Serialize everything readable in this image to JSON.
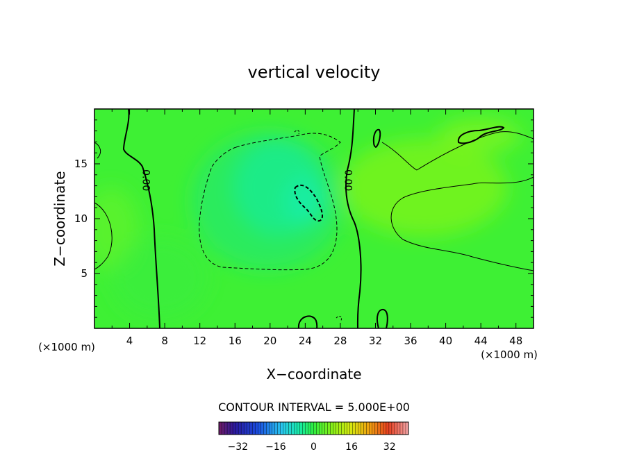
{
  "chart_data": {
    "type": "heatmap",
    "title": "vertical velocity",
    "xlabel": "X−coordinate",
    "ylabel": "Z−coordinate",
    "x_unit_left": "(×1000 m)",
    "x_unit_right": "(×1000 m)",
    "xlim": [
      0,
      50
    ],
    "ylim": [
      0,
      20
    ],
    "x_ticks": [
      4,
      8,
      12,
      16,
      20,
      24,
      28,
      32,
      36,
      40,
      44,
      48
    ],
    "y_ticks": [
      5,
      10,
      15
    ],
    "contour_interval_text": "CONTOUR INTERVAL = 5.000E+00",
    "colorbar": {
      "range": [
        -40,
        40
      ],
      "ticks": [
        -32,
        -16,
        0,
        16,
        32
      ]
    },
    "contour_labels": [
      {
        "text": "0.00",
        "x": 5.5,
        "z": 13.5
      },
      {
        "text": "0.00",
        "x": 28.5,
        "z": 13.5
      }
    ],
    "field_features": [
      {
        "kind": "min",
        "x": 21,
        "z": 12,
        "value": -8
      },
      {
        "kind": "min",
        "x": 24.5,
        "z": 11.5,
        "value": -10
      },
      {
        "kind": "max",
        "x": 36,
        "z": 12,
        "value": 9
      },
      {
        "kind": "max",
        "x": 44,
        "z": 17.5,
        "value": 6
      },
      {
        "kind": "max",
        "x": 32.5,
        "z": 17,
        "value": 6
      },
      {
        "kind": "max",
        "x": 2,
        "z": 10,
        "value": 4
      }
    ]
  }
}
